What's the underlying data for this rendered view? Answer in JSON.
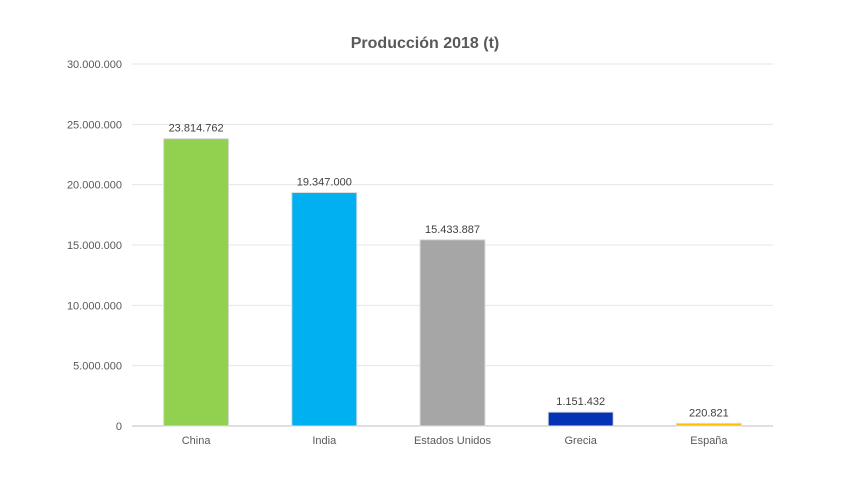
{
  "chart_data": {
    "type": "bar",
    "title": "Producción 2018 (t)",
    "xlabel": "",
    "ylabel": "",
    "categories": [
      "China",
      "India",
      "Estados Unidos",
      "Grecia",
      "España"
    ],
    "values": [
      23814762,
      19347000,
      15433887,
      1151432,
      220821
    ],
    "value_labels": [
      "23.814.762",
      "19.347.000",
      "15.433.887",
      "1.151.432",
      "220.821"
    ],
    "colors": [
      "#92d050",
      "#00b0f0",
      "#a6a6a6",
      "#0432b4",
      "#ffc000"
    ],
    "ylim": [
      0,
      30000000
    ],
    "yticks": [
      0,
      5000000,
      10000000,
      15000000,
      20000000,
      25000000,
      30000000
    ],
    "ytick_labels": [
      "0",
      "5.000.000",
      "10.000.000",
      "15.000.000",
      "20.000.000",
      "25.000.000",
      "30.000.000"
    ],
    "grid": true,
    "legend": "none"
  }
}
